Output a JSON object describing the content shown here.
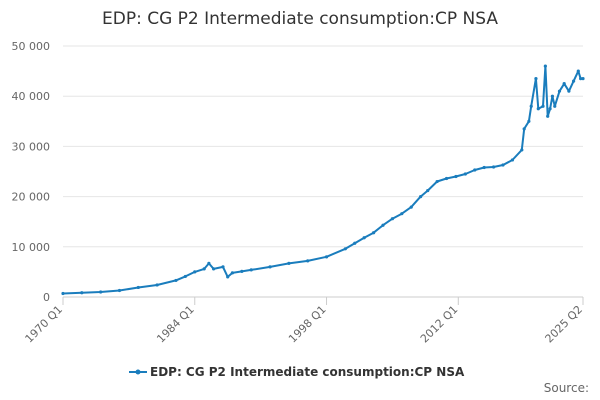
{
  "chart_data": {
    "type": "line",
    "title": "EDP: CG P2 Intermediate consumption:CP NSA",
    "xlabel": "",
    "ylabel": "",
    "x_range": [
      "1970 Q1",
      "2025 Q2"
    ],
    "x_tick_labels": [
      "1970 Q1",
      "1984 Q1",
      "1998 Q1",
      "2012 Q1",
      "2025 Q2"
    ],
    "ylim": [
      0,
      50000
    ],
    "y_tick_labels": [
      "0",
      "10 000",
      "20 000",
      "30 000",
      "40 000",
      "50 000"
    ],
    "grid": "horizontal",
    "legend_position": "bottom-center",
    "series": [
      {
        "name": "EDP: CG P2 Intermediate consumption:CP NSA",
        "color": "#1a7dbd",
        "points": [
          [
            "1970 Q1",
            700
          ],
          [
            "1972 Q1",
            850
          ],
          [
            "1974 Q1",
            1000
          ],
          [
            "1976 Q1",
            1300
          ],
          [
            "1978 Q1",
            1900
          ],
          [
            "1980 Q1",
            2400
          ],
          [
            "1982 Q1",
            3300
          ],
          [
            "1983 Q1",
            4100
          ],
          [
            "1984 Q1",
            5000
          ],
          [
            "1985 Q1",
            5600
          ],
          [
            "1985 Q3",
            6700
          ],
          [
            "1986 Q1",
            5600
          ],
          [
            "1987 Q1",
            6000
          ],
          [
            "1987 Q3",
            4000
          ],
          [
            "1988 Q1",
            4800
          ],
          [
            "1989 Q1",
            5100
          ],
          [
            "1990 Q1",
            5400
          ],
          [
            "1992 Q1",
            6000
          ],
          [
            "1994 Q1",
            6700
          ],
          [
            "1996 Q1",
            7200
          ],
          [
            "1998 Q1",
            8000
          ],
          [
            "2000 Q1",
            9600
          ],
          [
            "2001 Q1",
            10700
          ],
          [
            "2002 Q1",
            11800
          ],
          [
            "2003 Q1",
            12800
          ],
          [
            "2004 Q1",
            14300
          ],
          [
            "2005 Q1",
            15600
          ],
          [
            "2006 Q1",
            16600
          ],
          [
            "2007 Q1",
            17900
          ],
          [
            "2008 Q1",
            20000
          ],
          [
            "2008 Q4",
            21200
          ],
          [
            "2009 Q4",
            23000
          ],
          [
            "2010 Q4",
            23600
          ],
          [
            "2011 Q4",
            24000
          ],
          [
            "2012 Q4",
            24500
          ],
          [
            "2013 Q4",
            25300
          ],
          [
            "2014 Q4",
            25800
          ],
          [
            "2015 Q4",
            25900
          ],
          [
            "2016 Q4",
            26300
          ],
          [
            "2017 Q4",
            27300
          ],
          [
            "2018 Q4",
            29300
          ],
          [
            "2019 Q1",
            33500
          ],
          [
            "2019 Q3",
            35000
          ],
          [
            "2019 Q4",
            38000
          ],
          [
            "2020 Q2",
            43500
          ],
          [
            "2020 Q3",
            37500
          ],
          [
            "2021 Q1",
            38000
          ],
          [
            "2021 Q2",
            46000
          ],
          [
            "2021 Q3",
            36000
          ],
          [
            "2021 Q4",
            37500
          ],
          [
            "2022 Q1",
            40000
          ],
          [
            "2022 Q2",
            38000
          ],
          [
            "2022 Q4",
            41000
          ],
          [
            "2023 Q2",
            42500
          ],
          [
            "2023 Q4",
            41000
          ],
          [
            "2024 Q2",
            43000
          ],
          [
            "2024 Q4",
            45000
          ],
          [
            "2025 Q1",
            43500
          ],
          [
            "2025 Q2",
            43500
          ]
        ]
      }
    ],
    "source_label": "Source:"
  }
}
